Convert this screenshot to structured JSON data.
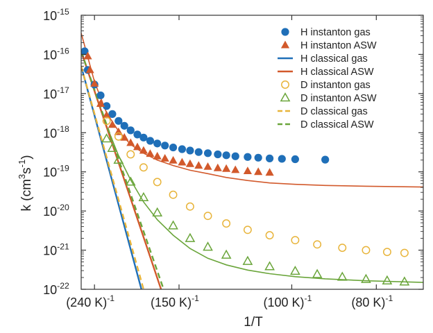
{
  "chart_data": {
    "type": "scatter",
    "xlabel": "1/T",
    "ylabel_base": "k (cm",
    "ylabel_sup1": "3",
    "ylabel_mid": "s",
    "ylabel_sup2": "-1",
    "ylabel_end": ")",
    "x_scale": "reciprocal temperature",
    "x_unit_label": "K",
    "xlim_T": [
      265,
      72
    ],
    "ylim": [
      1e-22,
      1e-15
    ],
    "y_scale": "log",
    "x_ticks": [
      {
        "T": 240,
        "label": "(240 K)",
        "sup": "-1"
      },
      {
        "T": 150,
        "label": "(150 K)",
        "sup": "-1"
      },
      {
        "T": 100,
        "label": "(100 K)",
        "sup": "-1"
      },
      {
        "T": 80,
        "label": "(80 K)",
        "sup": "-1"
      }
    ],
    "y_ticks": [
      {
        "exp": -15,
        "base": "10",
        "sup": "-15"
      },
      {
        "exp": -16,
        "base": "10",
        "sup": "-16"
      },
      {
        "exp": -17,
        "base": "10",
        "sup": "-17"
      },
      {
        "exp": -18,
        "base": "10",
        "sup": "-18"
      },
      {
        "exp": -19,
        "base": "10",
        "sup": "-19"
      },
      {
        "exp": -20,
        "base": "10",
        "sup": "-20"
      },
      {
        "exp": -21,
        "base": "10",
        "sup": "-21"
      },
      {
        "exp": -22,
        "base": "10",
        "sup": "-22"
      }
    ],
    "legend_position": "top-right",
    "colors": {
      "blue": "#1f6fb8",
      "orange": "#d2592b",
      "yellow": "#e8b43a",
      "green": "#6aa53a"
    },
    "series": [
      {
        "name": "H instanton gas",
        "kind": "marker",
        "marker": "filled-circle",
        "color": "#1f6fb8",
        "points": [
          [
            258,
            1.2e-16
          ],
          [
            252,
            4e-17
          ],
          [
            240,
            1.7e-17
          ],
          [
            230,
            9e-18
          ],
          [
            221,
            4.8e-18
          ],
          [
            213,
            3e-18
          ],
          [
            205,
            2e-18
          ],
          [
            198,
            1.5e-18
          ],
          [
            191,
            1.15e-18
          ],
          [
            184,
            9e-19
          ],
          [
            178,
            7.5e-19
          ],
          [
            172,
            6.2e-19
          ],
          [
            166,
            5.3e-19
          ],
          [
            160,
            4.7e-19
          ],
          [
            154,
            4.2e-19
          ],
          [
            148,
            3.8e-19
          ],
          [
            143,
            3.5e-19
          ],
          [
            138,
            3.2e-19
          ],
          [
            133,
            3e-19
          ],
          [
            128,
            2.8e-19
          ],
          [
            124,
            2.65e-19
          ],
          [
            120,
            2.5e-19
          ],
          [
            115,
            2.4e-19
          ],
          [
            111,
            2.3e-19
          ],
          [
            107,
            2.2e-19
          ],
          [
            103,
            2.15e-19
          ],
          [
            99,
            2.1e-19
          ],
          [
            91,
            2.05e-19
          ]
        ]
      },
      {
        "name": "H instanton ASW",
        "kind": "marker",
        "marker": "filled-triangle",
        "color": "#d2592b",
        "points": [
          [
            252,
            9e-17
          ],
          [
            248,
            4e-17
          ],
          [
            240,
            1.8e-17
          ],
          [
            230,
            5.5e-18
          ],
          [
            221,
            2.8e-18
          ],
          [
            213,
            1.6e-18
          ],
          [
            205,
            1.05e-18
          ],
          [
            198,
            7.5e-19
          ],
          [
            191,
            5.5e-19
          ],
          [
            184,
            4.3e-19
          ],
          [
            178,
            3.5e-19
          ],
          [
            172,
            2.9e-19
          ],
          [
            166,
            2.5e-19
          ],
          [
            160,
            2.2e-19
          ],
          [
            154,
            1.95e-19
          ],
          [
            148,
            1.75e-19
          ],
          [
            143,
            1.6e-19
          ],
          [
            138,
            1.45e-19
          ],
          [
            133,
            1.35e-19
          ],
          [
            128,
            1.25e-19
          ],
          [
            124,
            1.2e-19
          ],
          [
            120,
            1.12e-19
          ],
          [
            115,
            1.05e-19
          ],
          [
            111,
            1e-19
          ],
          [
            107,
            9.6e-20
          ]
        ]
      },
      {
        "name": "H classical gas",
        "kind": "line",
        "dash": false,
        "color": "#1f6fb8",
        "points": [
          [
            265,
            5e-17
          ],
          [
            180,
            1e-22
          ]
        ]
      },
      {
        "name": "H classical ASW",
        "kind": "line",
        "dash": false,
        "color": "#d2592b",
        "points": [
          [
            265,
            1.2e-16
          ],
          [
            163,
            1e-22
          ]
        ]
      },
      {
        "name": "D instanton gas",
        "kind": "marker",
        "marker": "open-circle",
        "color": "#e8b43a",
        "points": [
          [
            221,
            2e-18
          ],
          [
            205,
            8e-19
          ],
          [
            191,
            2.8e-19
          ],
          [
            178,
            1.3e-19
          ],
          [
            166,
            5.5e-20
          ],
          [
            154,
            2.6e-20
          ],
          [
            143,
            1.3e-20
          ],
          [
            133,
            7.5e-21
          ],
          [
            124,
            4.8e-21
          ],
          [
            115,
            3.3e-21
          ],
          [
            107,
            2.4e-21
          ],
          [
            99,
            1.8e-21
          ],
          [
            93,
            1.4e-21
          ],
          [
            87,
            1.15e-21
          ],
          [
            82,
            1e-21
          ],
          [
            78,
            9e-22
          ],
          [
            75,
            8.5e-22
          ]
        ]
      },
      {
        "name": "D instanton ASW",
        "kind": "marker",
        "marker": "open-triangle",
        "color": "#6aa53a",
        "points": [
          [
            221,
            7e-19
          ],
          [
            213,
            4e-19
          ],
          [
            205,
            2e-19
          ],
          [
            191,
            5.5e-20
          ],
          [
            178,
            2.2e-20
          ],
          [
            166,
            9e-21
          ],
          [
            154,
            4.2e-21
          ],
          [
            143,
            2e-21
          ],
          [
            133,
            1.2e-21
          ],
          [
            124,
            7.5e-22
          ],
          [
            115,
            5.2e-22
          ],
          [
            107,
            3.8e-22
          ],
          [
            99,
            2.9e-22
          ],
          [
            93,
            2.4e-22
          ],
          [
            87,
            2.05e-22
          ],
          [
            82,
            1.8e-22
          ],
          [
            78,
            1.65e-22
          ],
          [
            75,
            1.55e-22
          ]
        ]
      },
      {
        "name": "D classical gas",
        "kind": "line",
        "dash": true,
        "color": "#e8b43a",
        "points": [
          [
            265,
            5e-17
          ],
          [
            178,
            1e-22
          ]
        ]
      },
      {
        "name": "D classical ASW",
        "kind": "line",
        "dash": true,
        "color": "#6aa53a",
        "points": [
          [
            265,
            1.2e-16
          ],
          [
            161,
            1e-22
          ]
        ]
      }
    ],
    "fit_curves": [
      {
        "color": "#d2592b",
        "points": [
          [
            265,
            3.5e-16
          ],
          [
            240,
            2e-17
          ],
          [
            221,
            3.2e-18
          ],
          [
            205,
            1.1e-18
          ],
          [
            191,
            5e-19
          ],
          [
            178,
            3e-19
          ],
          [
            166,
            2e-19
          ],
          [
            154,
            1.45e-19
          ],
          [
            143,
            1.1e-19
          ],
          [
            133,
            9e-20
          ],
          [
            124,
            7.2e-20
          ],
          [
            115,
            6e-20
          ],
          [
            107,
            5.2e-20
          ],
          [
            99,
            4.8e-20
          ],
          [
            91,
            4.5e-20
          ],
          [
            82,
            4.3e-20
          ],
          [
            72,
            4.1e-20
          ]
        ]
      },
      {
        "color": "#6aa53a",
        "points": [
          [
            265,
            1.2e-16
          ],
          [
            240,
            1.2e-17
          ],
          [
            221,
            1.5e-18
          ],
          [
            205,
            2.6e-19
          ],
          [
            191,
            6.2e-20
          ],
          [
            178,
            1.7e-20
          ],
          [
            166,
            6e-21
          ],
          [
            154,
            2.4e-21
          ],
          [
            143,
            1.1e-21
          ],
          [
            133,
            6.2e-22
          ],
          [
            124,
            4.2e-22
          ],
          [
            115,
            3.1e-22
          ],
          [
            107,
            2.5e-22
          ],
          [
            99,
            2.1e-22
          ],
          [
            91,
            1.85e-22
          ],
          [
            82,
            1.65e-22
          ],
          [
            72,
            1.5e-22
          ]
        ]
      }
    ]
  }
}
